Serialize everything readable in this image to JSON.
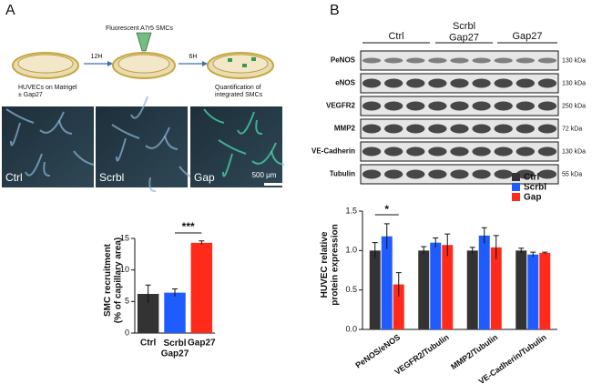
{
  "panels": {
    "a": "A",
    "b": "B"
  },
  "schematic": {
    "label_top": "Fluorescent A7r5 SMCs",
    "step1": "12H",
    "step2": "6H",
    "dish1": "HUVECs on Matrigel\n± Gap27",
    "dish3": "Quantification of\nintegrated SMCs"
  },
  "micrographs": [
    {
      "label": "Ctrl"
    },
    {
      "label": "Scrbl"
    },
    {
      "label": "Gap",
      "scale_bar": "500 μm"
    }
  ],
  "blot": {
    "groups": [
      "Ctrl",
      "Scrbl\nGap27",
      "Gap27"
    ],
    "rows": [
      {
        "protein": "PeNOS",
        "size": "130 kDa"
      },
      {
        "protein": "eNOS",
        "size": "130 kDa"
      },
      {
        "protein": "VEGFR2",
        "size": "250 kDa"
      },
      {
        "protein": "MMP2",
        "size": "72 kDa"
      },
      {
        "protein": "VE-Cadherin",
        "size": "130 kDa"
      },
      {
        "protein": "Tubulin",
        "size": "55 kDa"
      }
    ]
  },
  "chart_data": [
    {
      "type": "bar",
      "categories": [
        "Ctrl",
        "Scrbl\nGap27",
        "Gap27"
      ],
      "values": [
        6.2,
        6.4,
        14.3
      ],
      "errors": [
        1.4,
        0.6,
        0.3
      ],
      "colors": [
        "#333333",
        "#1f5cff",
        "#ff2a1a"
      ],
      "ylabel": "SMC recruitment\n(% of capillary area)",
      "ylim": [
        0,
        15
      ],
      "yticks": [
        0,
        5,
        10,
        15
      ],
      "annotation": "***"
    },
    {
      "type": "grouped_bar",
      "categories": [
        "PeNOS/eNOS",
        "VEGFR2/Tubulin",
        "MMP2/Tubulin",
        "VE-Cadherin/Tubulin"
      ],
      "series": [
        {
          "name": "Ctrl",
          "color": "#333333",
          "values": [
            1.0,
            1.0,
            1.0,
            1.0
          ],
          "errors": [
            0.1,
            0.05,
            0.04,
            0.03
          ]
        },
        {
          "name": "Scrbl",
          "color": "#1f5cff",
          "values": [
            1.18,
            1.1,
            1.19,
            0.95
          ],
          "errors": [
            0.16,
            0.06,
            0.1,
            0.03
          ]
        },
        {
          "name": "Gap",
          "color": "#ff2a1a",
          "values": [
            0.57,
            1.07,
            1.04,
            0.97
          ],
          "errors": [
            0.15,
            0.14,
            0.15,
            0.01
          ]
        }
      ],
      "ylabel": "HUVEC relative\nprotein expression",
      "ylim": [
        0,
        1.5
      ],
      "yticks": [
        {
          "value": 0,
          "label": "0.0"
        },
        0.5,
        {
          "value": 1,
          "label": "1.0"
        },
        1.5
      ],
      "legend": "top-right",
      "annotation": "*"
    }
  ]
}
